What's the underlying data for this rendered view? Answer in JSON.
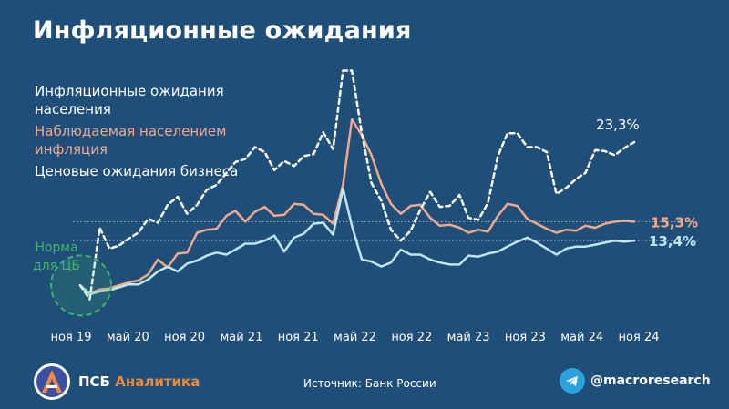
{
  "title": "Инфляционные ожидания",
  "source": "Источник: Банк России",
  "brand": {
    "name": "ПСБ",
    "accent": "Аналитика"
  },
  "telegram_handle": "@macroresearch",
  "colors": {
    "background": "#1f4e79",
    "households": "#ffffff",
    "observed": "#f0a98c",
    "business": "#bfe6f2",
    "norm": "#3fb26b"
  },
  "chart_data": {
    "type": "line",
    "x_ticks": [
      "ноя 19",
      "май 20",
      "ноя 20",
      "май 21",
      "ноя 21",
      "май 22",
      "ноя 22",
      "май 23",
      "ноя 23",
      "май 24",
      "ноя 24"
    ],
    "ylim": [
      6,
      31
    ],
    "series": [
      {
        "name": "Инфляционные ожидания населения",
        "style": "dashed",
        "end_label": "23,3%",
        "points": [
          [
            "2019-11-01",
            8.9
          ],
          [
            "2019-12-01",
            7.5
          ],
          [
            "2020-01-01",
            14.7
          ],
          [
            "2020-02-01",
            12.6
          ],
          [
            "2020-03-01",
            12.9
          ],
          [
            "2020-04-01",
            13.6
          ],
          [
            "2020-05-01",
            14.2
          ],
          [
            "2020-06-01",
            15.6
          ],
          [
            "2020-07-01",
            15.2
          ],
          [
            "2020-08-01",
            17.0
          ],
          [
            "2020-09-01",
            17.8
          ],
          [
            "2020-10-01",
            16.1
          ],
          [
            "2020-11-01",
            17.0
          ],
          [
            "2020-12-01",
            18.5
          ],
          [
            "2021-01-01",
            19.0
          ],
          [
            "2021-02-01",
            20.2
          ],
          [
            "2021-03-01",
            21.3
          ],
          [
            "2021-04-01",
            21.6
          ],
          [
            "2021-05-01",
            22.8
          ],
          [
            "2021-06-01",
            22.3
          ],
          [
            "2021-07-01",
            20.5
          ],
          [
            "2021-08-01",
            21.4
          ],
          [
            "2021-09-01",
            20.9
          ],
          [
            "2021-10-01",
            21.9
          ],
          [
            "2021-11-01",
            22.1
          ],
          [
            "2021-12-01",
            24.3
          ],
          [
            "2022-01-01",
            22.6
          ],
          [
            "2022-02-01",
            30.5
          ],
          [
            "2022-03-01",
            30.5
          ],
          [
            "2022-04-01",
            24.2
          ],
          [
            "2022-05-01",
            19.2
          ],
          [
            "2022-06-01",
            17.4
          ],
          [
            "2022-07-01",
            14.5
          ],
          [
            "2022-08-01",
            13.4
          ],
          [
            "2022-09-01",
            14.4
          ],
          [
            "2022-10-01",
            16.5
          ],
          [
            "2022-11-01",
            18.3
          ],
          [
            "2022-12-01",
            16.8
          ],
          [
            "2023-01-01",
            16.9
          ],
          [
            "2023-02-01",
            18.0
          ],
          [
            "2023-03-01",
            15.7
          ],
          [
            "2023-04-01",
            15.5
          ],
          [
            "2023-05-01",
            17.2
          ],
          [
            "2023-06-01",
            21.9
          ],
          [
            "2023-07-01",
            24.2
          ],
          [
            "2023-08-01",
            24.2
          ],
          [
            "2023-09-01",
            22.8
          ],
          [
            "2023-10-01",
            22.8
          ],
          [
            "2023-11-01",
            22.3
          ],
          [
            "2023-12-01",
            18.1
          ],
          [
            "2024-01-01",
            18.7
          ],
          [
            "2024-02-01",
            19.6
          ],
          [
            "2024-03-01",
            20.2
          ],
          [
            "2024-04-01",
            22.5
          ],
          [
            "2024-05-01",
            22.4
          ],
          [
            "2024-06-01",
            22.0
          ],
          [
            "2024-07-01",
            22.7
          ],
          [
            "2024-08-01",
            23.3
          ]
        ]
      },
      {
        "name": "Наблюдаемая населением инфляция",
        "style": "solid",
        "end_label": "15,3%",
        "points": [
          [
            "2019-11-01",
            8.9
          ],
          [
            "2019-12-01",
            8.1
          ],
          [
            "2020-01-01",
            8.5
          ],
          [
            "2020-02-01",
            8.6
          ],
          [
            "2020-03-01",
            8.9
          ],
          [
            "2020-04-01",
            9.2
          ],
          [
            "2020-05-01",
            9.4
          ],
          [
            "2020-06-01",
            10.0
          ],
          [
            "2020-07-01",
            11.5
          ],
          [
            "2020-08-01",
            10.7
          ],
          [
            "2020-09-01",
            12.1
          ],
          [
            "2020-10-01",
            12.2
          ],
          [
            "2020-11-01",
            14.2
          ],
          [
            "2020-12-01",
            14.5
          ],
          [
            "2021-01-01",
            14.6
          ],
          [
            "2021-02-01",
            15.9
          ],
          [
            "2021-03-01",
            16.4
          ],
          [
            "2021-04-01",
            15.3
          ],
          [
            "2021-05-01",
            16.3
          ],
          [
            "2021-06-01",
            16.8
          ],
          [
            "2021-07-01",
            15.9
          ],
          [
            "2021-08-01",
            16.0
          ],
          [
            "2021-09-01",
            17.1
          ],
          [
            "2021-10-01",
            17.0
          ],
          [
            "2021-11-01",
            16.1
          ],
          [
            "2021-12-01",
            16.0
          ],
          [
            "2022-01-01",
            15.1
          ],
          [
            "2022-02-01",
            19.0
          ],
          [
            "2022-03-01",
            25.6
          ],
          [
            "2022-04-01",
            24.0
          ],
          [
            "2022-05-01",
            22.0
          ],
          [
            "2022-06-01",
            19.1
          ],
          [
            "2022-07-01",
            17.1
          ],
          [
            "2022-08-01",
            16.1
          ],
          [
            "2022-09-01",
            16.9
          ],
          [
            "2022-10-01",
            17.0
          ],
          [
            "2022-11-01",
            15.7
          ],
          [
            "2022-12-01",
            14.9
          ],
          [
            "2023-01-01",
            15.0
          ],
          [
            "2023-02-01",
            14.7
          ],
          [
            "2023-03-01",
            14.2
          ],
          [
            "2023-04-01",
            14.5
          ],
          [
            "2023-05-01",
            14.3
          ],
          [
            "2023-06-01",
            15.9
          ],
          [
            "2023-07-01",
            17.1
          ],
          [
            "2023-08-01",
            16.9
          ],
          [
            "2023-09-01",
            15.6
          ],
          [
            "2023-10-01",
            15.1
          ],
          [
            "2023-11-01",
            14.6
          ],
          [
            "2023-12-01",
            14.2
          ],
          [
            "2024-01-01",
            14.5
          ],
          [
            "2024-02-01",
            14.4
          ],
          [
            "2024-03-01",
            14.9
          ],
          [
            "2024-04-01",
            14.7
          ],
          [
            "2024-05-01",
            15.1
          ],
          [
            "2024-06-01",
            15.3
          ],
          [
            "2024-07-01",
            15.4
          ],
          [
            "2024-08-01",
            15.3
          ]
        ]
      },
      {
        "name": "Ценовые ожидания бизнеса",
        "style": "solid",
        "end_label": "13,4%",
        "points": [
          [
            "2019-11-01",
            8.9
          ],
          [
            "2019-12-01",
            8.0
          ],
          [
            "2020-01-01",
            8.3
          ],
          [
            "2020-02-01",
            8.4
          ],
          [
            "2020-03-01",
            8.7
          ],
          [
            "2020-04-01",
            9.0
          ],
          [
            "2020-05-01",
            9.0
          ],
          [
            "2020-06-01",
            9.5
          ],
          [
            "2020-07-01",
            10.3
          ],
          [
            "2020-08-01",
            10.8
          ],
          [
            "2020-09-01",
            10.3
          ],
          [
            "2020-10-01",
            11.1
          ],
          [
            "2020-11-01",
            11.4
          ],
          [
            "2020-12-01",
            11.9
          ],
          [
            "2021-01-01",
            12.2
          ],
          [
            "2021-02-01",
            12.0
          ],
          [
            "2021-03-01",
            12.5
          ],
          [
            "2021-04-01",
            13.1
          ],
          [
            "2021-05-01",
            13.1
          ],
          [
            "2021-06-01",
            13.4
          ],
          [
            "2021-07-01",
            13.9
          ],
          [
            "2021-08-01",
            12.3
          ],
          [
            "2021-09-01",
            13.7
          ],
          [
            "2021-10-01",
            14.1
          ],
          [
            "2021-11-01",
            15.1
          ],
          [
            "2021-12-01",
            15.2
          ],
          [
            "2022-01-01",
            14.0
          ],
          [
            "2022-02-01",
            18.6
          ],
          [
            "2022-03-01",
            14.9
          ],
          [
            "2022-04-01",
            11.5
          ],
          [
            "2022-05-01",
            11.3
          ],
          [
            "2022-06-01",
            10.8
          ],
          [
            "2022-07-01",
            11.2
          ],
          [
            "2022-08-01",
            12.5
          ],
          [
            "2022-09-01",
            12.0
          ],
          [
            "2022-10-01",
            12.0
          ],
          [
            "2022-11-01",
            11.5
          ],
          [
            "2022-12-01",
            11.2
          ],
          [
            "2023-01-01",
            11.0
          ],
          [
            "2023-02-01",
            11.0
          ],
          [
            "2023-03-01",
            11.9
          ],
          [
            "2023-04-01",
            11.8
          ],
          [
            "2023-05-01",
            12.1
          ],
          [
            "2023-06-01",
            12.3
          ],
          [
            "2023-07-01",
            12.8
          ],
          [
            "2023-08-01",
            13.3
          ],
          [
            "2023-09-01",
            13.7
          ],
          [
            "2023-10-01",
            13.2
          ],
          [
            "2023-11-01",
            12.6
          ],
          [
            "2023-12-01",
            12.0
          ],
          [
            "2024-01-01",
            12.6
          ],
          [
            "2024-02-01",
            12.8
          ],
          [
            "2024-03-01",
            12.8
          ],
          [
            "2024-04-01",
            13.0
          ],
          [
            "2024-05-01",
            13.2
          ],
          [
            "2024-06-01",
            13.4
          ],
          [
            "2024-07-01",
            13.3
          ],
          [
            "2024-08-01",
            13.4
          ]
        ]
      }
    ],
    "reference_lines": [
      15.3,
      13.4
    ],
    "annotations": [
      {
        "text": "Норма для ЦБ",
        "lines": [
          "Норма",
          "для ЦБ"
        ],
        "target_date": "2019-11-01",
        "target_value": 8.9
      }
    ]
  }
}
